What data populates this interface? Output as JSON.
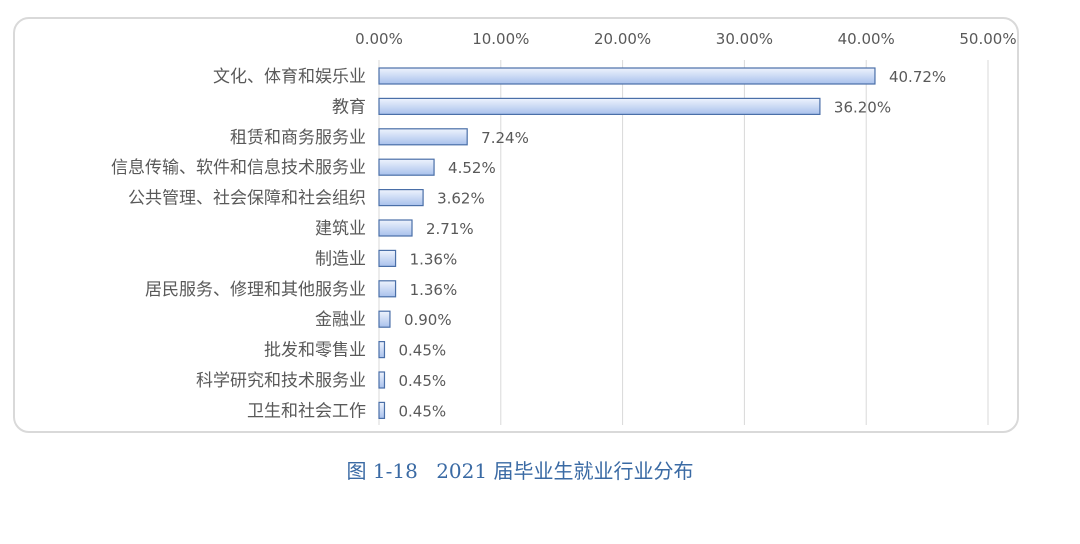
{
  "caption": {
    "figure_number": "图 1-18",
    "title": "2021 届毕业生就业行业分布"
  },
  "chart_data": {
    "type": "bar",
    "orientation": "horizontal",
    "title": "",
    "xlabel": "",
    "ylabel": "",
    "xlim": [
      0,
      50
    ],
    "x_ticks": [
      "0.00%",
      "10.00%",
      "20.00%",
      "30.00%",
      "40.00%",
      "50.00%"
    ],
    "x_axis_position": "top",
    "grid": true,
    "legend": "none",
    "categories": [
      "文化、体育和娱乐业",
      "教育",
      "租赁和商务服务业",
      "信息传输、软件和信息技术服务业",
      "公共管理、社会保障和社会组织",
      "建筑业",
      "制造业",
      "居民服务、修理和其他服务业",
      "金融业",
      "批发和零售业",
      "科学研究和技术服务业",
      "卫生和社会工作"
    ],
    "values": [
      40.72,
      36.2,
      7.24,
      4.52,
      3.62,
      2.71,
      1.36,
      1.36,
      0.9,
      0.45,
      0.45,
      0.45
    ],
    "data_labels": [
      "40.72%",
      "36.20%",
      "7.24%",
      "4.52%",
      "3.62%",
      "2.71%",
      "1.36%",
      "1.36%",
      "0.90%",
      "0.45%",
      "0.45%",
      "0.45%"
    ],
    "colors": {
      "bar_fill_light": "#eef3fd",
      "bar_fill_dark": "#a9c1ec",
      "bar_stroke": "#4a6fa8",
      "grid": "#d9d9d9",
      "text": "#595959",
      "caption": "#3a6aa4"
    }
  }
}
